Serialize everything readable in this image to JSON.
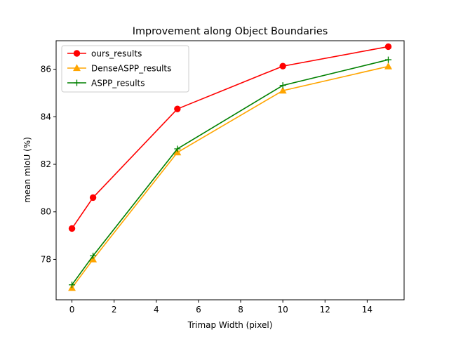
{
  "chart_data": {
    "type": "line",
    "title": "Improvement along Object Boundaries",
    "xlabel": "Trimap Width (pixel)",
    "ylabel": "mean mIoU (%)",
    "x": [
      0,
      1,
      5,
      10,
      15
    ],
    "xlim": [
      -0.75,
      15.75
    ],
    "ylim": [
      76.3,
      87.2
    ],
    "xticks": [
      0,
      2,
      4,
      6,
      8,
      10,
      12,
      14
    ],
    "yticks": [
      78,
      80,
      82,
      84,
      86
    ],
    "grid": false,
    "legend_position": "upper-left",
    "series": [
      {
        "name": "ours_results",
        "color": "#ff0000",
        "marker": "circle",
        "values": [
          79.3,
          80.6,
          84.33,
          86.13,
          86.95
        ]
      },
      {
        "name": "DenseASPP_results",
        "color": "#ffa500",
        "marker": "triangle",
        "values": [
          76.8,
          78.0,
          82.5,
          85.1,
          86.12
        ]
      },
      {
        "name": "ASPP_results",
        "color": "#008000",
        "marker": "plus",
        "values": [
          76.93,
          78.15,
          82.65,
          85.32,
          86.4
        ]
      }
    ]
  }
}
